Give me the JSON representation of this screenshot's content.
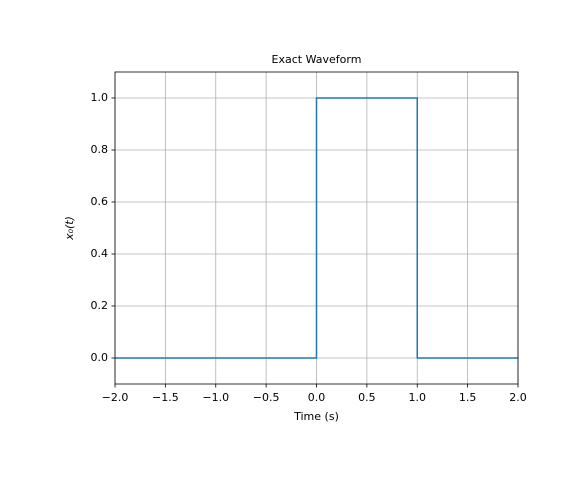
{
  "chart_data": {
    "type": "line",
    "title": "Exact Waveform",
    "x_label": "Time (s)",
    "y_label": "x₀(t)",
    "x": [
      -2,
      0,
      0,
      1,
      1,
      2
    ],
    "series": [
      {
        "name": "x0",
        "color": "#1f77b4",
        "values": [
          0,
          0,
          1,
          1,
          0,
          0
        ]
      }
    ],
    "xlim": [
      -2,
      2
    ],
    "ylim": [
      -0.1,
      1.1
    ],
    "xticks": [
      {
        "value": -2,
        "label": "−2.0"
      },
      {
        "value": -1.5,
        "label": "−1.5"
      },
      {
        "value": -1,
        "label": "−1.0"
      },
      {
        "value": -0.5,
        "label": "−0.5"
      },
      {
        "value": 0,
        "label": "0.0"
      },
      0.5,
      {
        "value": 1,
        "label": "1.0"
      },
      1.5,
      {
        "value": 2,
        "label": "2.0"
      }
    ],
    "yticks": [
      {
        "value": 0,
        "label": "0.0"
      },
      0.2,
      0.4,
      0.6,
      0.8,
      {
        "value": 1,
        "label": "1.0"
      }
    ],
    "grid": true
  }
}
